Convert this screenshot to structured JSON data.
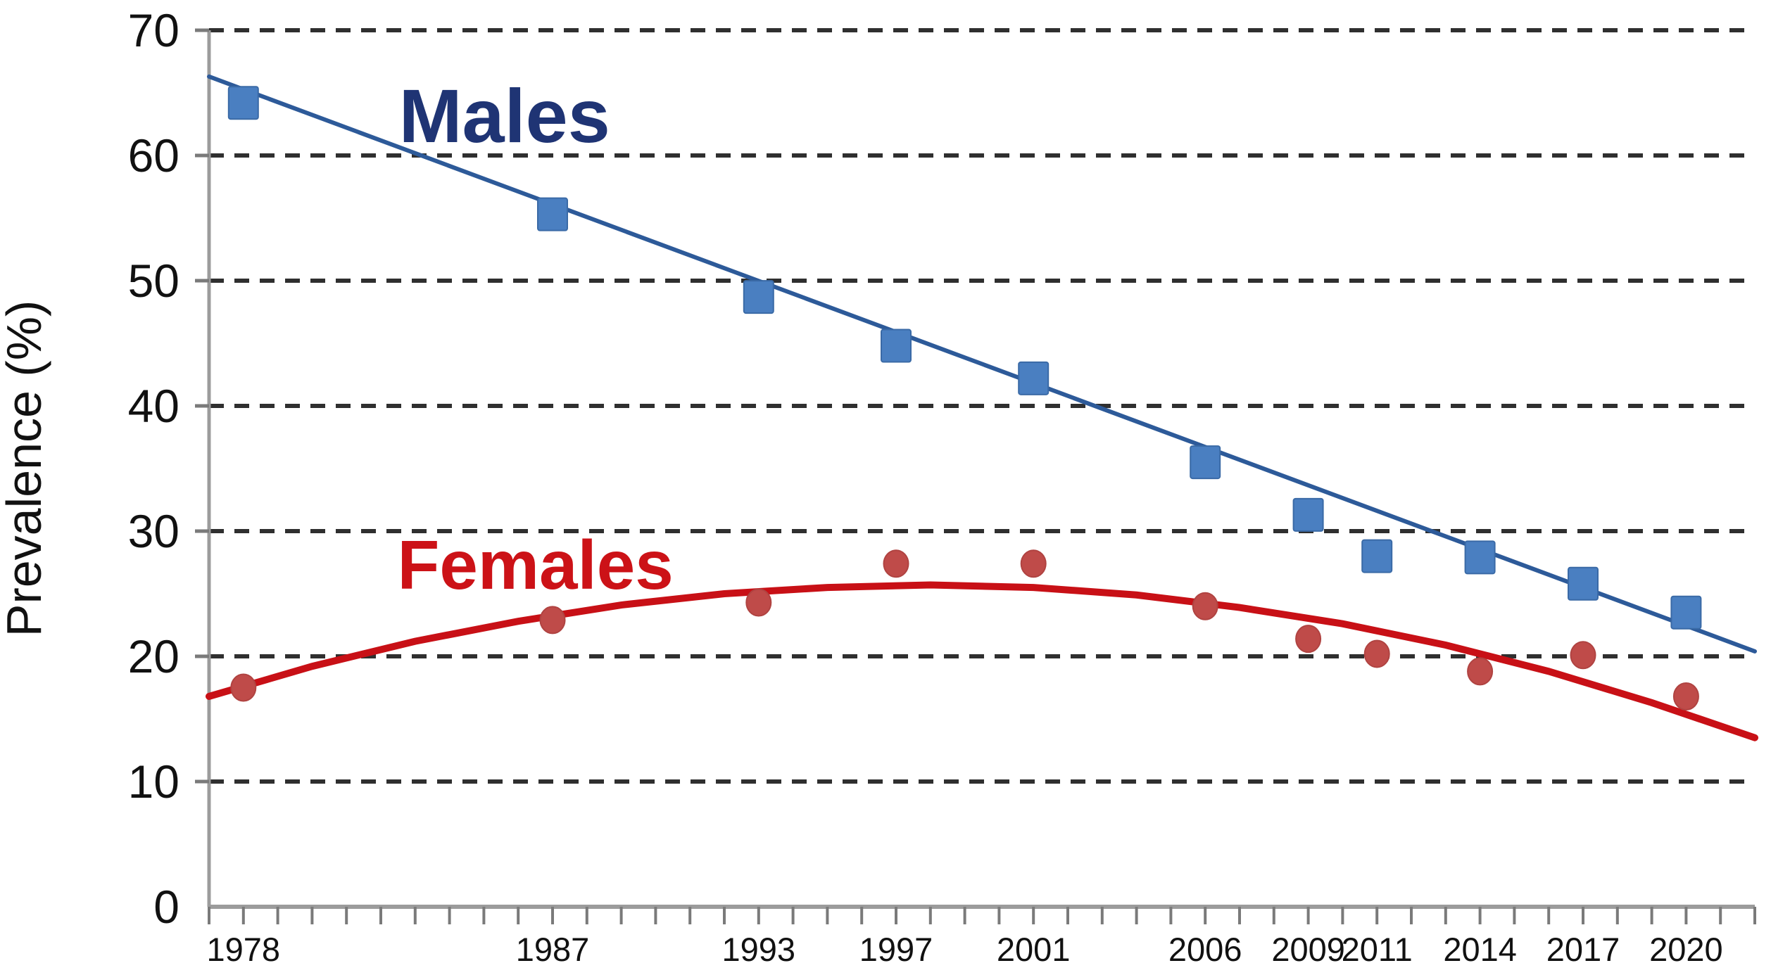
{
  "chart_data": {
    "type": "scatter",
    "title": "",
    "xlabel": "",
    "ylabel": "Prevalence (%)",
    "xlim": [
      1977,
      2022
    ],
    "ylim": [
      0,
      70
    ],
    "y_ticks": [
      0,
      10,
      20,
      30,
      40,
      50,
      60,
      70
    ],
    "y_tick_labels": [
      "0",
      "10",
      "20",
      "30",
      "40",
      "50",
      "60",
      "70"
    ],
    "x_minor_tick_step": 1,
    "grid": "horizontal-dashed",
    "legend_position": "inline-annotations",
    "categories": [
      1978,
      1987,
      1993,
      1997,
      2001,
      2006,
      2009,
      2011,
      2014,
      2017,
      2020
    ],
    "x_tick_labels": [
      "1978",
      "1987",
      "1993",
      "1997",
      "2001",
      "2006",
      "2009",
      "2011",
      "2014",
      "2017",
      "2020"
    ],
    "series": [
      {
        "name": "Males",
        "marker": "square",
        "x": [
          1978,
          1987,
          1993,
          1997,
          2001,
          2006,
          2009,
          2011,
          2014,
          2017,
          2020
        ],
        "values": [
          64.2,
          55.3,
          48.7,
          44.8,
          42.2,
          35.5,
          31.3,
          28.0,
          27.9,
          25.8,
          23.5
        ],
        "trend": {
          "type": "linear",
          "points": [
            [
              1977,
              66.3
            ],
            [
              2022,
              20.4
            ]
          ]
        }
      },
      {
        "name": "Females",
        "marker": "circle",
        "x": [
          1978,
          1987,
          1993,
          1997,
          2001,
          2006,
          2009,
          2011,
          2014,
          2017,
          2020
        ],
        "values": [
          17.5,
          22.9,
          24.3,
          27.4,
          27.4,
          24.0,
          21.4,
          20.2,
          18.8,
          20.1,
          16.8
        ],
        "trend": {
          "type": "quadratic",
          "points": [
            [
              1977,
              16.8
            ],
            [
              1980,
              19.2
            ],
            [
              1983,
              21.2
            ],
            [
              1986,
              22.8
            ],
            [
              1989,
              24.1
            ],
            [
              1992,
              25.0
            ],
            [
              1995,
              25.5
            ],
            [
              1998,
              25.7
            ],
            [
              2001,
              25.5
            ],
            [
              2004,
              24.9
            ],
            [
              2007,
              23.9
            ],
            [
              2010,
              22.6
            ],
            [
              2013,
              20.9
            ],
            [
              2016,
              18.8
            ],
            [
              2019,
              16.3
            ],
            [
              2022,
              13.5
            ]
          ]
        }
      }
    ],
    "annotations": [
      {
        "text": "Males",
        "x": 1985.6,
        "y": 63.2,
        "series": "Males"
      },
      {
        "text": "Females",
        "x": 1986.5,
        "y": 27.3,
        "series": "Females"
      }
    ],
    "colors": {
      "background": "#ffffff",
      "gridline": "#2f2f2f",
      "axis": "#9c9c9c",
      "tick": "#7a7a7a",
      "tick_label": "#111111",
      "axis_title": "#111111",
      "males_marker": "#4a7fc1",
      "males_marker_border": "#3a6aa6",
      "males_trend": "#2d5a99",
      "males_label": "#1f3474",
      "females_marker": "#bf4b49",
      "females_marker_border": "#b04341",
      "females_trend": "#c81016",
      "females_label": "#cc1217"
    }
  }
}
